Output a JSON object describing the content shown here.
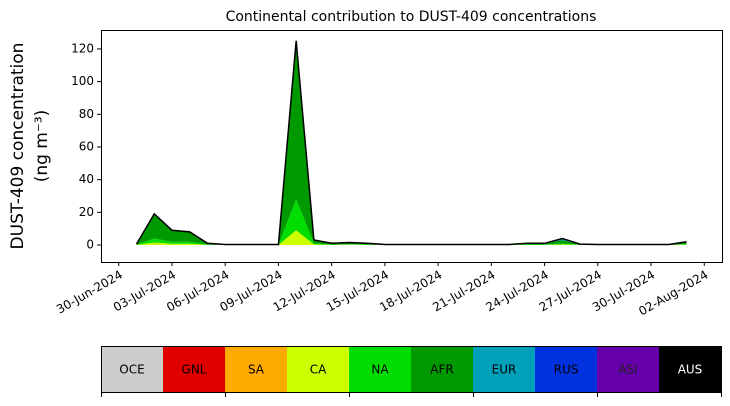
{
  "chart_data": {
    "type": "stacked-area",
    "title": "Continental contribution to DUST-409 concentrations",
    "y_label": [
      "DUST-409 concentration",
      "(ng m⁻³)"
    ],
    "x": [
      "2024-07-01",
      "2024-07-02",
      "2024-07-03",
      "2024-07-04",
      "2024-07-05",
      "2024-07-06",
      "2024-07-07",
      "2024-07-08",
      "2024-07-09",
      "2024-07-10",
      "2024-07-11",
      "2024-07-12",
      "2024-07-13",
      "2024-07-14",
      "2024-07-15",
      "2024-07-16",
      "2024-07-17",
      "2024-07-18",
      "2024-07-19",
      "2024-07-20",
      "2024-07-21",
      "2024-07-22",
      "2024-07-23",
      "2024-07-24",
      "2024-07-25",
      "2024-07-26",
      "2024-07-27",
      "2024-07-28",
      "2024-07-29",
      "2024-07-30",
      "2024-07-31",
      "2024-08-01"
    ],
    "xlim": [
      "2024-06-29",
      "2024-08-03"
    ],
    "xticks": [
      {
        "value": "2024-06-30",
        "label": "30-Jun-2024"
      },
      {
        "value": "2024-07-03",
        "label": "03-Jul-2024"
      },
      {
        "value": "2024-07-06",
        "label": "06-Jul-2024"
      },
      {
        "value": "2024-07-09",
        "label": "09-Jul-2024"
      },
      {
        "value": "2024-07-12",
        "label": "12-Jul-2024"
      },
      {
        "value": "2024-07-15",
        "label": "15-Jul-2024"
      },
      {
        "value": "2024-07-18",
        "label": "18-Jul-2024"
      },
      {
        "value": "2024-07-21",
        "label": "21-Jul-2024"
      },
      {
        "value": "2024-07-24",
        "label": "24-Jul-2024"
      },
      {
        "value": "2024-07-27",
        "label": "27-Jul-2024"
      },
      {
        "value": "2024-07-30",
        "label": "30-Jul-2024"
      },
      {
        "value": "2024-08-02",
        "label": "02-Aug-2024"
      }
    ],
    "ylim": [
      -10.4,
      131.6
    ],
    "yticks": [
      0,
      20,
      40,
      60,
      80,
      100,
      120
    ],
    "series": [
      {
        "name": "OCE",
        "color": "#cccccc",
        "values": [
          0,
          0,
          0,
          0,
          0,
          0,
          0,
          0,
          0,
          0,
          0,
          0,
          0,
          0,
          0,
          0,
          0,
          0,
          0,
          0,
          0,
          0,
          0,
          0,
          0,
          0,
          0,
          0,
          0,
          0,
          0,
          0
        ]
      },
      {
        "name": "GNL",
        "color": "#e00000",
        "values": [
          0,
          0,
          0,
          0,
          0,
          0,
          0,
          0,
          0,
          0,
          0,
          0,
          0,
          0,
          0,
          0,
          0,
          0,
          0,
          0,
          0,
          0,
          0,
          0,
          0,
          0,
          0,
          0,
          0,
          0,
          0,
          0
        ]
      },
      {
        "name": "SA",
        "color": "#ffaa00",
        "values": [
          0,
          0,
          0,
          0,
          0,
          0,
          0,
          0,
          0,
          0,
          0,
          0,
          0,
          0,
          0,
          0,
          0,
          0,
          0,
          0,
          0,
          0,
          0,
          0,
          0,
          0,
          0,
          0,
          0,
          0,
          0,
          0
        ]
      },
      {
        "name": "CA",
        "color": "#ccff00",
        "values": [
          0.1,
          1.5,
          0.8,
          0.8,
          0.1,
          0.05,
          0.05,
          0.05,
          0.05,
          9,
          0.4,
          0.1,
          0.2,
          0.1,
          0.05,
          0.05,
          0.05,
          0.05,
          0.05,
          0.05,
          0.05,
          0.05,
          0.1,
          0.1,
          0.4,
          0.1,
          0.05,
          0.05,
          0.05,
          0.05,
          0.05,
          0.2
        ]
      },
      {
        "name": "NA",
        "color": "#00dd00",
        "values": [
          0.1,
          2.5,
          1.2,
          1.2,
          0.2,
          0.05,
          0.05,
          0.05,
          0.05,
          19,
          0.6,
          0.2,
          0.3,
          0.2,
          0.05,
          0.05,
          0.05,
          0.05,
          0.05,
          0.05,
          0.05,
          0.05,
          0.2,
          0.2,
          0.6,
          0.1,
          0.05,
          0.05,
          0.05,
          0.05,
          0.05,
          0.4
        ]
      },
      {
        "name": "AFR",
        "color": "#009900",
        "values": [
          0.3,
          15,
          7,
          6,
          0.7,
          0.2,
          0.2,
          0.2,
          0.2,
          95,
          2,
          0.7,
          1,
          0.7,
          0.2,
          0.2,
          0.2,
          0.2,
          0.2,
          0.2,
          0.2,
          0.2,
          0.7,
          0.7,
          2,
          0.3,
          0.2,
          0.2,
          0.2,
          0.2,
          0.2,
          1.2
        ]
      },
      {
        "name": "EUR",
        "color": "#00a0bb",
        "values": [
          0.02,
          0.02,
          0.02,
          0.02,
          0.02,
          0.02,
          0.02,
          0.02,
          0.02,
          1.5,
          0.02,
          0.02,
          0.02,
          0.02,
          0.02,
          0.02,
          0.02,
          0.02,
          0.02,
          0.02,
          0.02,
          0.02,
          0.02,
          0.02,
          0.6,
          0.02,
          0.02,
          0.02,
          0.02,
          0.02,
          0.02,
          0.02
        ]
      },
      {
        "name": "RUS",
        "color": "#0033dd",
        "values": [
          0.03,
          0.03,
          0.03,
          0.03,
          0.03,
          0.03,
          0.03,
          0.03,
          0.03,
          0.5,
          0.03,
          0.03,
          0.03,
          0.03,
          0.03,
          0.03,
          0.03,
          0.03,
          0.03,
          0.03,
          0.03,
          0.03,
          0.03,
          0.03,
          0.4,
          0.03,
          0.03,
          0.03,
          0.03,
          0.03,
          0.03,
          0.2
        ]
      },
      {
        "name": "ASI",
        "color": "#6600aa",
        "values": [
          0,
          0,
          0,
          0,
          0,
          0,
          0,
          0,
          0,
          0,
          0,
          0,
          0,
          0,
          0,
          0,
          0,
          0,
          0,
          0,
          0,
          0,
          0,
          0,
          0,
          0,
          0,
          0,
          0,
          0,
          0,
          0
        ]
      },
      {
        "name": "AUS",
        "color": "#000000",
        "values": [
          0,
          0,
          0,
          0,
          0,
          0,
          0,
          0,
          0,
          0,
          0,
          0,
          0,
          0,
          0,
          0,
          0,
          0,
          0,
          0,
          0,
          0,
          0,
          0,
          0,
          0,
          0,
          0,
          0,
          0,
          0,
          0
        ]
      }
    ]
  }
}
